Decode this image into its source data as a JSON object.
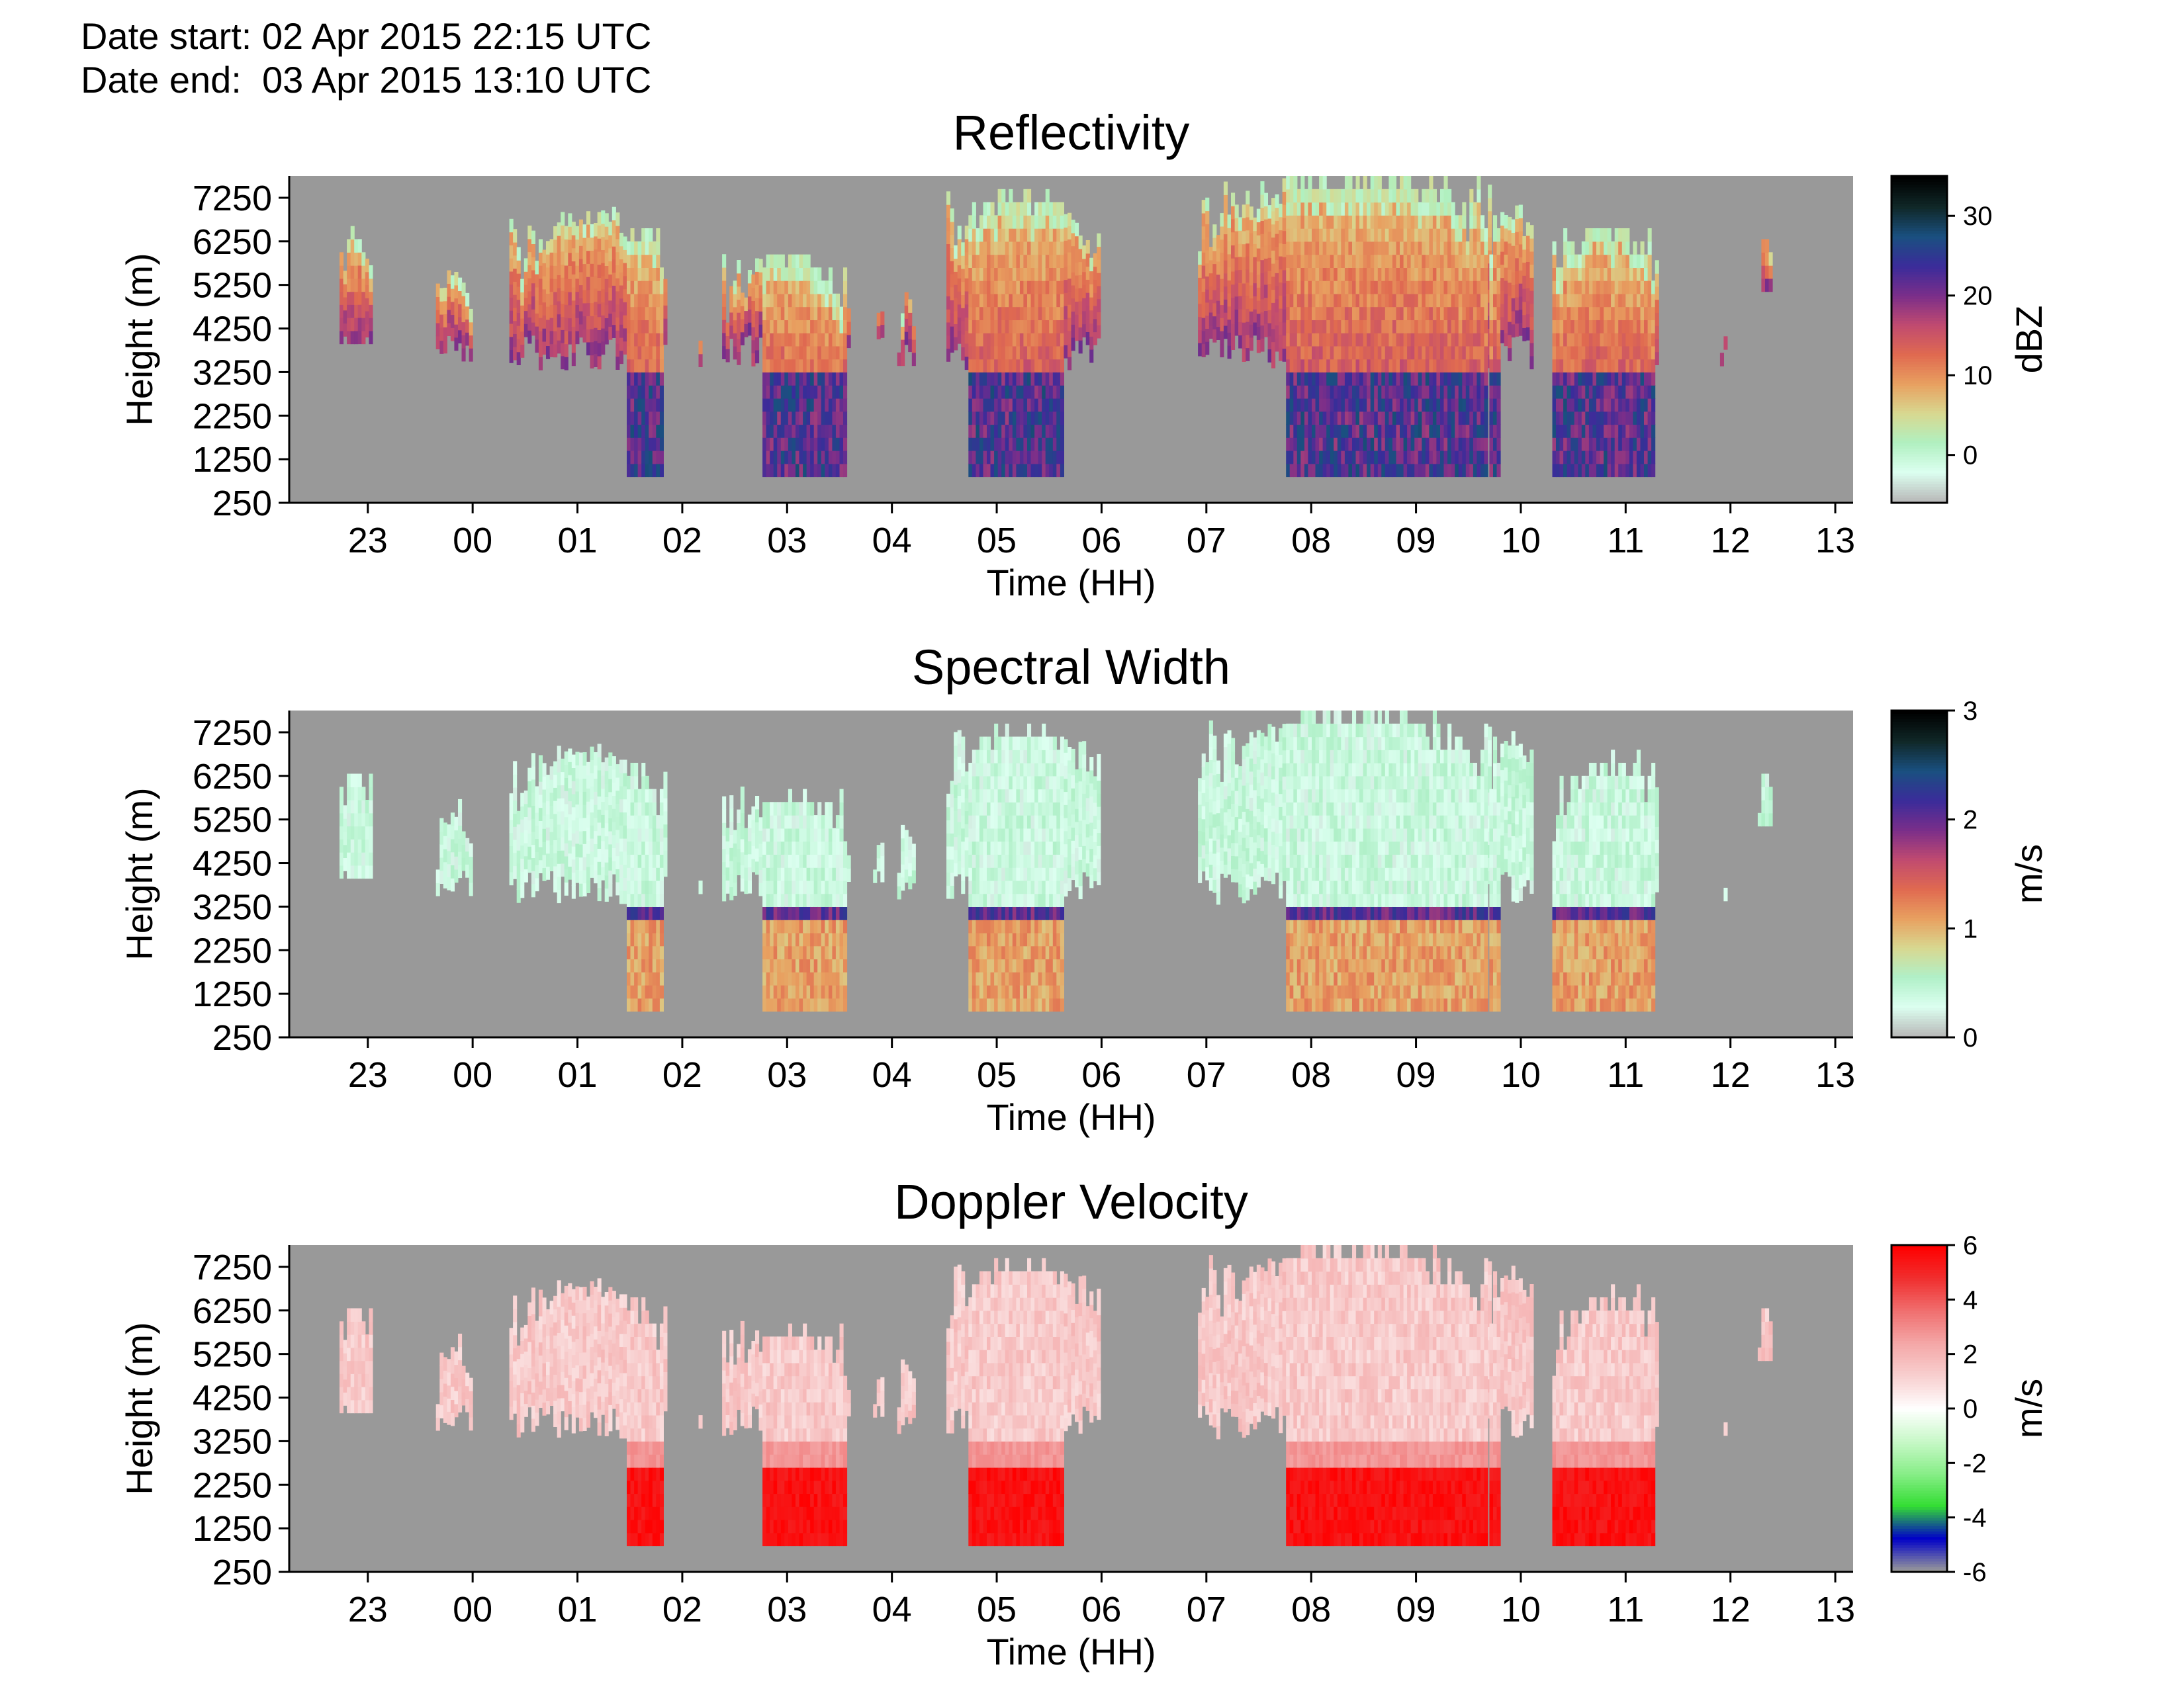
{
  "header": {
    "date_start_label": "Date start:",
    "date_start_value": "02 Apr 2015 22:15 UTC",
    "date_end_label": "Date end:",
    "date_end_value": "03 Apr 2015 13:10 UTC"
  },
  "chart_data": [
    {
      "type": "heatmap",
      "title": "Reflectivity",
      "xlabel": "Time (HH)",
      "ylabel": "Height (m)",
      "colorbar_label": "dBZ",
      "x_ticks": [
        "23",
        "00",
        "01",
        "02",
        "03",
        "04",
        "05",
        "06",
        "07",
        "08",
        "09",
        "10",
        "11",
        "12",
        "13"
      ],
      "xlim_hours_since_2200": [
        0.25,
        15.17
      ],
      "y_ticks": [
        250,
        1250,
        2250,
        3250,
        4250,
        5250,
        6250,
        7250
      ],
      "ylim": [
        250,
        7750
      ],
      "colorbar_ticks": [
        0,
        10,
        20,
        30
      ],
      "colorbar_range": [
        -6,
        35
      ],
      "colorscale": [
        "#b8b8b8",
        "#dcfff0",
        "#b0f0c0",
        "#d8d890",
        "#e8a060",
        "#e06a50",
        "#c04a70",
        "#7a2e8a",
        "#3a2c9a",
        "#1a5080",
        "#102828",
        "#000000"
      ],
      "missing_color": "#999999"
    },
    {
      "type": "heatmap",
      "title": "Spectral Width",
      "xlabel": "Time (HH)",
      "ylabel": "Height (m)",
      "colorbar_label": "m/s",
      "x_ticks": [
        "23",
        "00",
        "01",
        "02",
        "03",
        "04",
        "05",
        "06",
        "07",
        "08",
        "09",
        "10",
        "11",
        "12",
        "13"
      ],
      "xlim_hours_since_2200": [
        0.25,
        15.17
      ],
      "y_ticks": [
        250,
        1250,
        2250,
        3250,
        4250,
        5250,
        6250,
        7250
      ],
      "ylim": [
        250,
        7750
      ],
      "colorbar_ticks": [
        0,
        1,
        2,
        3
      ],
      "colorbar_range": [
        0,
        3
      ],
      "colorscale": [
        "#b8b8b8",
        "#dcfff0",
        "#b0f0c8",
        "#d8d890",
        "#e8a060",
        "#e06a50",
        "#c04a70",
        "#7a2e8a",
        "#3a2c9a",
        "#1a5080",
        "#102828",
        "#000000"
      ],
      "missing_color": "#999999"
    },
    {
      "type": "heatmap",
      "title": "Doppler Velocity",
      "xlabel": "Time (HH)",
      "ylabel": "Height (m)",
      "colorbar_label": "m/s",
      "x_ticks": [
        "23",
        "00",
        "01",
        "02",
        "03",
        "04",
        "05",
        "06",
        "07",
        "08",
        "09",
        "10",
        "11",
        "12",
        "13"
      ],
      "xlim_hours_since_2200": [
        0.25,
        15.17
      ],
      "y_ticks": [
        250,
        1250,
        2250,
        3250,
        4250,
        5250,
        6250,
        7250
      ],
      "ylim": [
        250,
        7750
      ],
      "colorbar_ticks": [
        -6,
        -4,
        -2,
        0,
        2,
        4,
        6
      ],
      "colorbar_range": [
        -6,
        6
      ],
      "colorscale": [
        "#999999",
        "#0000c8",
        "#33dd33",
        "#88ee88",
        "#c8f8c8",
        "#ffffff",
        "#f8d0d0",
        "#f4a8a8",
        "#f07070",
        "#f03030",
        "#ff0000"
      ],
      "missing_color": "#999999"
    }
  ]
}
